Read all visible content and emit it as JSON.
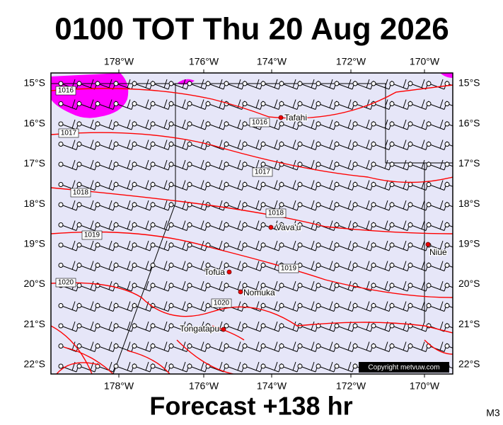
{
  "header": {
    "title": "0100 TOT Thu 20 Aug 2026"
  },
  "footer": {
    "forecast": "Forecast +138 hr",
    "model": "M3"
  },
  "map": {
    "lon_labels": [
      "178°W",
      "176°W",
      "174°W",
      "172°W",
      "170°W"
    ],
    "lat_labels": [
      "15°S",
      "16°S",
      "17°S",
      "18°S",
      "19°S",
      "20°S",
      "21°S",
      "22°S"
    ],
    "isobar_labels": [
      "1016",
      "1016",
      "1017",
      "1017",
      "1018",
      "1018",
      "1019",
      "1019",
      "1020",
      "1020"
    ],
    "places": [
      {
        "name": "Tafahi"
      },
      {
        "name": "Vava'u"
      },
      {
        "name": "Niue"
      },
      {
        "name": "Tofua"
      },
      {
        "name": "Nomuka"
      },
      {
        "name": "Tongatapu"
      }
    ],
    "copyright": "Copyright metvuw.com"
  }
}
